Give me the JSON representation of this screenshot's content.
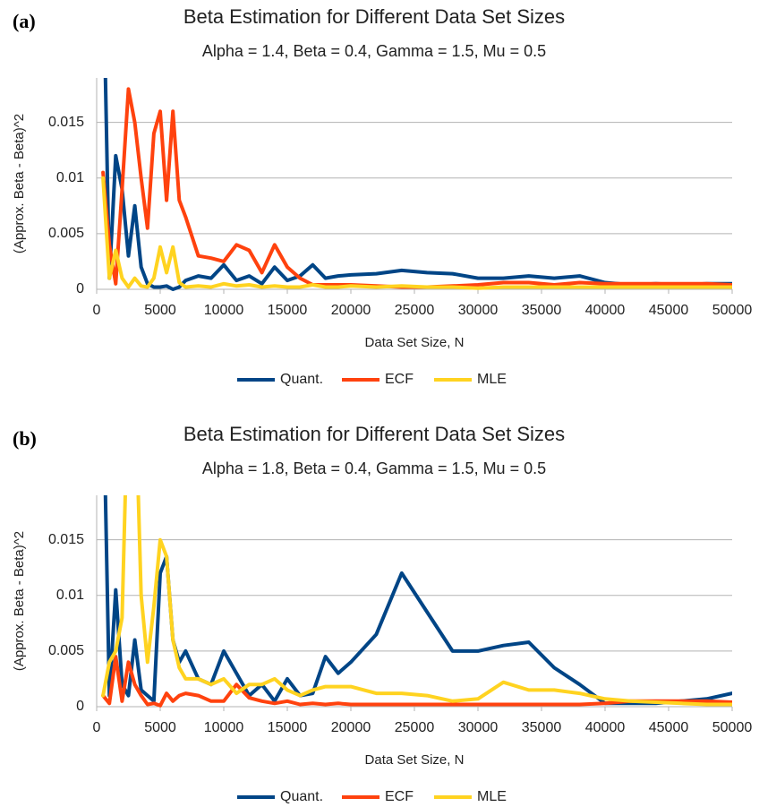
{
  "chart_data": [
    {
      "type": "line",
      "panel_label": "(a)",
      "title": "Beta Estimation for Different Data Set Sizes",
      "subtitle": "Alpha = 1.4, Beta = 0.4, Gamma = 1.5, Mu = 0.5",
      "x_label": "Data Set Size, N",
      "y_label": "(Approx. Beta - Beta)^2",
      "xlim": [
        0,
        50000
      ],
      "xticks": [
        0,
        5000,
        10000,
        15000,
        20000,
        25000,
        30000,
        35000,
        40000,
        45000,
        50000
      ],
      "ylim": [
        0,
        0.019
      ],
      "yticks": [
        0,
        0.005,
        0.01,
        0.015
      ],
      "grid": true,
      "legend": "bottom",
      "x": [
        500,
        1000,
        1500,
        2000,
        2500,
        3000,
        3500,
        4000,
        4500,
        5000,
        5500,
        6000,
        6500,
        7000,
        8000,
        9000,
        10000,
        11000,
        12000,
        13000,
        14000,
        15000,
        16000,
        17000,
        18000,
        19000,
        20000,
        22000,
        24000,
        26000,
        28000,
        30000,
        32000,
        34000,
        36000,
        38000,
        40000,
        42000,
        44000,
        46000,
        48000,
        50000
      ],
      "series": [
        {
          "name": "Quant.",
          "color": "#004586",
          "values": [
            0.03,
            0.001,
            0.012,
            0.009,
            0.003,
            0.0075,
            0.002,
            0.0005,
            0.0002,
            0.0002,
            0.0003,
            0,
            0.0002,
            0.0008,
            0.0012,
            0.001,
            0.0022,
            0.0008,
            0.0012,
            0.0005,
            0.002,
            0.0008,
            0.0012,
            0.0022,
            0.001,
            0.0012,
            0.0013,
            0.0014,
            0.0017,
            0.0015,
            0.0014,
            0.001,
            0.001,
            0.0012,
            0.001,
            0.0012,
            0.0006,
            0.0004,
            0.0005,
            0.0004,
            0.0005,
            0.0005
          ]
        },
        {
          "name": "ECF",
          "color": "#ff420e",
          "values": [
            0.0105,
            0.004,
            0.0005,
            0.009,
            0.018,
            0.015,
            0.01,
            0.0055,
            0.014,
            0.016,
            0.008,
            0.016,
            0.008,
            0.0065,
            0.003,
            0.0028,
            0.0025,
            0.004,
            0.0035,
            0.0015,
            0.004,
            0.002,
            0.001,
            0.0004,
            0.0004,
            0.0004,
            0.0004,
            0.0003,
            0.0002,
            0.0002,
            0.0003,
            0.0004,
            0.0006,
            0.0006,
            0.0004,
            0.0006,
            0.0005,
            0.0005,
            0.0005,
            0.0005,
            0.0005,
            0.0004
          ]
        },
        {
          "name": "MLE",
          "color": "#ffd320",
          "values": [
            0.01,
            0.001,
            0.0035,
            0.001,
            0.0002,
            0.001,
            0.0003,
            0.0002,
            0.001,
            0.0038,
            0.0015,
            0.0038,
            0.0006,
            0.0002,
            0.0003,
            0.0002,
            0.0005,
            0.0003,
            0.0004,
            0.0002,
            0.0003,
            0.0002,
            0.0002,
            0.0004,
            0.0002,
            0.0002,
            0.0003,
            0.0002,
            0.0003,
            0.0002,
            0.0002,
            0.0001,
            0.0002,
            0.0002,
            0.0002,
            0.0002,
            0.0002,
            0.0002,
            0.0002,
            0.0002,
            0.0002,
            0.0002
          ]
        }
      ]
    },
    {
      "type": "line",
      "panel_label": "(b)",
      "title": "Beta Estimation for Different Data Set Sizes",
      "subtitle": "Alpha = 1.8, Beta = 0.4, Gamma = 1.5, Mu = 0.5",
      "x_label": "Data Set Size, N",
      "y_label": "(Approx. Beta - Beta)^2",
      "xlim": [
        0,
        50000
      ],
      "xticks": [
        0,
        5000,
        10000,
        15000,
        20000,
        25000,
        30000,
        35000,
        40000,
        45000,
        50000
      ],
      "ylim": [
        0,
        0.019
      ],
      "yticks": [
        0,
        0.005,
        0.01,
        0.015
      ],
      "grid": true,
      "legend": "bottom",
      "x": [
        500,
        1000,
        1500,
        2000,
        2500,
        3000,
        3500,
        4000,
        4500,
        5000,
        5500,
        6000,
        6500,
        7000,
        8000,
        9000,
        10000,
        11000,
        12000,
        13000,
        14000,
        15000,
        16000,
        17000,
        18000,
        19000,
        20000,
        22000,
        24000,
        26000,
        28000,
        30000,
        32000,
        34000,
        36000,
        38000,
        40000,
        42000,
        44000,
        46000,
        48000,
        50000
      ],
      "series": [
        {
          "name": "Quant.",
          "color": "#004586",
          "values": [
            0.03,
            0.001,
            0.0105,
            0.002,
            0.001,
            0.006,
            0.0015,
            0.001,
            0.0005,
            0.012,
            0.0135,
            0.006,
            0.004,
            0.005,
            0.0025,
            0.002,
            0.005,
            0.003,
            0.001,
            0.002,
            0.0005,
            0.0025,
            0.001,
            0.0012,
            0.0045,
            0.003,
            0.004,
            0.0065,
            0.012,
            0.0085,
            0.005,
            0.005,
            0.0055,
            0.0058,
            0.0035,
            0.002,
            0.0003,
            0.0003,
            0.0003,
            0.0005,
            0.0007,
            0.0012
          ]
        },
        {
          "name": "ECF",
          "color": "#ff420e",
          "values": [
            0.001,
            0.0003,
            0.0045,
            0.0005,
            0.004,
            0.002,
            0.001,
            0.0002,
            0.0003,
            0.0001,
            0.0012,
            0.0005,
            0.001,
            0.0012,
            0.001,
            0.0005,
            0.0005,
            0.002,
            0.0008,
            0.0005,
            0.0003,
            0.0005,
            0.0002,
            0.0003,
            0.0002,
            0.0003,
            0.0002,
            0.0002,
            0.0002,
            0.0002,
            0.0002,
            0.0002,
            0.0002,
            0.0002,
            0.0002,
            0.0002,
            0.0003,
            0.0005,
            0.0005,
            0.0005,
            0.0005,
            0.0004
          ]
        },
        {
          "name": "MLE",
          "color": "#ffd320",
          "values": [
            0.001,
            0.004,
            0.005,
            0.008,
            0.03,
            0.03,
            0.01,
            0.004,
            0.009,
            0.015,
            0.0135,
            0.006,
            0.0035,
            0.0025,
            0.0025,
            0.002,
            0.0025,
            0.0012,
            0.002,
            0.002,
            0.0025,
            0.0015,
            0.001,
            0.0015,
            0.0018,
            0.0018,
            0.0018,
            0.0012,
            0.0012,
            0.001,
            0.0005,
            0.0007,
            0.0022,
            0.0015,
            0.0015,
            0.0012,
            0.0007,
            0.0005,
            0.0004,
            0.0003,
            0.0002,
            0.0002
          ]
        }
      ]
    }
  ]
}
